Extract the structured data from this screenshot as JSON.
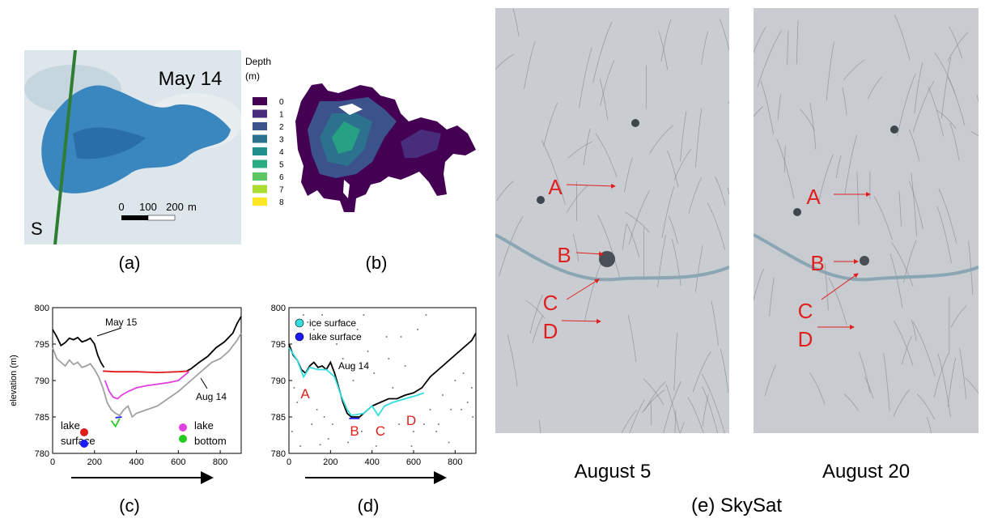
{
  "panel_a": {
    "label": "(a)",
    "date": "May 14",
    "side": "S",
    "scale_labels": [
      "0",
      "100",
      "200"
    ],
    "scale_unit": "m"
  },
  "panel_b": {
    "label": "(b)",
    "colorbar": {
      "title": [
        "Depth",
        "(m)"
      ],
      "ticks": [
        0,
        1,
        2,
        3,
        4,
        5,
        6,
        7,
        8
      ],
      "colors": [
        "#440154",
        "#472d7b",
        "#3b528b",
        "#2c728e",
        "#21908d",
        "#27ad81",
        "#5dc863",
        "#aadc32",
        "#fde725"
      ]
    }
  },
  "panel_e": {
    "label": "(e) SkySat",
    "images": [
      {
        "date": "August 5",
        "markers": [
          "A",
          "B",
          "C",
          "D"
        ]
      },
      {
        "date": "August 20",
        "markers": [
          "A",
          "B",
          "C",
          "D"
        ]
      }
    ]
  },
  "chart_data": [
    {
      "type": "line",
      "label": "(c)",
      "ylabel": "elevation (m)",
      "xlim": [
        0,
        900
      ],
      "ylim": [
        780,
        800
      ],
      "xticks": [
        0,
        200,
        400,
        600,
        800
      ],
      "yticks": [
        780,
        785,
        790,
        795,
        800
      ],
      "series": [
        {
          "name": "May 15",
          "color": "#000000",
          "x": [
            0,
            20,
            40,
            60,
            80,
            100,
            120,
            140,
            160,
            180,
            200,
            215,
            230,
            245,
            260,
            640,
            660,
            700,
            740,
            780,
            820,
            860,
            880,
            900
          ],
          "values": [
            797,
            796,
            794.8,
            795.2,
            795.8,
            795.6,
            795.9,
            795.3,
            795.5,
            795.8,
            795,
            793.5,
            792.5,
            791.8,
            null,
            791.3,
            791.6,
            792.5,
            793.3,
            794.5,
            795.3,
            796.5,
            797.8,
            798.8
          ]
        },
        {
          "name": "Aug 14",
          "color": "#a0a0a0",
          "x": [
            0,
            20,
            40,
            60,
            80,
            100,
            120,
            140,
            160,
            180,
            200,
            220,
            240,
            260,
            280,
            300,
            320,
            340,
            360,
            380,
            400,
            450,
            500,
            550,
            600,
            640,
            680,
            720,
            760,
            800,
            840,
            880,
            900
          ],
          "values": [
            794.5,
            793,
            792.5,
            792,
            792.8,
            792.2,
            792.5,
            791.8,
            792,
            792.3,
            791.5,
            790.5,
            789,
            787,
            786,
            785.5,
            785.2,
            786,
            786.5,
            785,
            785.5,
            786,
            786.5,
            787.5,
            788.5,
            789.5,
            790.5,
            791.5,
            792.5,
            793,
            794,
            795.5,
            796.5
          ]
        },
        {
          "color": "#e31a1c",
          "x": [
            240,
            300,
            400,
            500,
            600,
            650
          ],
          "values": [
            791.3,
            791.2,
            791.2,
            791.1,
            791.2,
            791.3
          ]
        },
        {
          "color": "#e040e0",
          "x": [
            250,
            270,
            290,
            310,
            330,
            360,
            400,
            450,
            500,
            550,
            600,
            650
          ],
          "values": [
            790,
            788.5,
            787.7,
            787.5,
            788,
            788.5,
            789,
            789.3,
            789.5,
            789.7,
            790,
            791.2
          ]
        },
        {
          "color": "#22cc22",
          "x": [
            280,
            300,
            320
          ],
          "values": [
            784.5,
            783.7,
            784.8
          ]
        },
        {
          "color": "#1a1aff",
          "x": [
            300,
            330
          ],
          "values": [
            784.9,
            785
          ]
        }
      ],
      "legend": [
        {
          "label": [
            "lake",
            "surface"
          ],
          "colors": [
            "#e31a1c",
            "#1a1aff"
          ]
        },
        {
          "label": [
            "lake",
            "bottom"
          ],
          "colors": [
            "#e040e0",
            "#22cc22"
          ]
        }
      ]
    },
    {
      "type": "line",
      "label": "(d)",
      "xlim": [
        0,
        900
      ],
      "ylim": [
        780,
        800
      ],
      "xticks": [
        0,
        200,
        400,
        600,
        800
      ],
      "yticks": [
        780,
        785,
        790,
        795,
        800
      ],
      "series": [
        {
          "type": "scatter",
          "color": "#777777",
          "x": [
            15,
            40,
            55,
            90,
            110,
            135,
            160,
            190,
            230,
            260,
            285,
            310,
            330,
            350,
            380,
            410,
            440,
            470,
            500,
            530,
            560,
            590,
            620,
            650,
            680,
            710,
            740,
            770,
            800,
            830,
            860,
            885,
            25,
            70,
            120,
            170,
            210,
            250,
            300,
            360,
            420,
            480,
            540,
            600,
            660,
            720,
            780,
            840,
            880,
            150
          ],
          "values": [
            783,
            787,
            781,
            798,
            784,
            786,
            799,
            782,
            795,
            793,
            781.5,
            790,
            797,
            783,
            794,
            791,
            782.5,
            796,
            789,
            784,
            792,
            781,
            797,
            784,
            786,
            783,
            788,
            781.5,
            790,
            786,
            787,
            785,
            789,
            799,
            797,
            785,
            784,
            798,
            792,
            799,
            781,
            793,
            796,
            783,
            799,
            784,
            786,
            791,
            789,
            781.2
          ]
        },
        {
          "name": "Aug 14",
          "color": "#000000",
          "x": [
            0,
            20,
            40,
            60,
            80,
            100,
            120,
            140,
            160,
            180,
            200,
            220,
            240,
            260,
            280,
            300,
            340,
            360,
            380,
            400,
            440,
            480,
            520,
            560,
            600,
            640,
            680,
            720,
            760,
            800,
            840,
            880,
            900
          ],
          "values": [
            795,
            793.5,
            792.8,
            791.5,
            791,
            792,
            792.5,
            791.8,
            792,
            791.5,
            792.5,
            791,
            789,
            787,
            785.5,
            785,
            785,
            785.5,
            786,
            786.5,
            787,
            787.5,
            787.5,
            788,
            788.3,
            789,
            790.5,
            791.5,
            792.5,
            793.5,
            794.5,
            795.5,
            796.5
          ]
        },
        {
          "color": "#33dddd",
          "x": [
            0,
            40,
            70,
            100,
            140,
            180,
            220,
            250,
            280,
            300,
            360,
            400,
            430,
            460,
            500,
            560,
            620,
            650
          ],
          "values": [
            794.5,
            792.8,
            790.5,
            791.8,
            791.5,
            791.5,
            790.5,
            788,
            786,
            785.2,
            785.5,
            786.5,
            785.2,
            786.5,
            787,
            787.5,
            788,
            788.3
          ]
        },
        {
          "color": "#1a1aff",
          "x": [
            290,
            340
          ],
          "values": [
            784.8,
            784.8
          ]
        }
      ],
      "legend": [
        {
          "label": "ice surface",
          "color": "#33dddd"
        },
        {
          "label": "lake surface",
          "color": "#1a1aff"
        }
      ],
      "annotations": [
        "A",
        "B",
        "C",
        "D"
      ]
    }
  ]
}
